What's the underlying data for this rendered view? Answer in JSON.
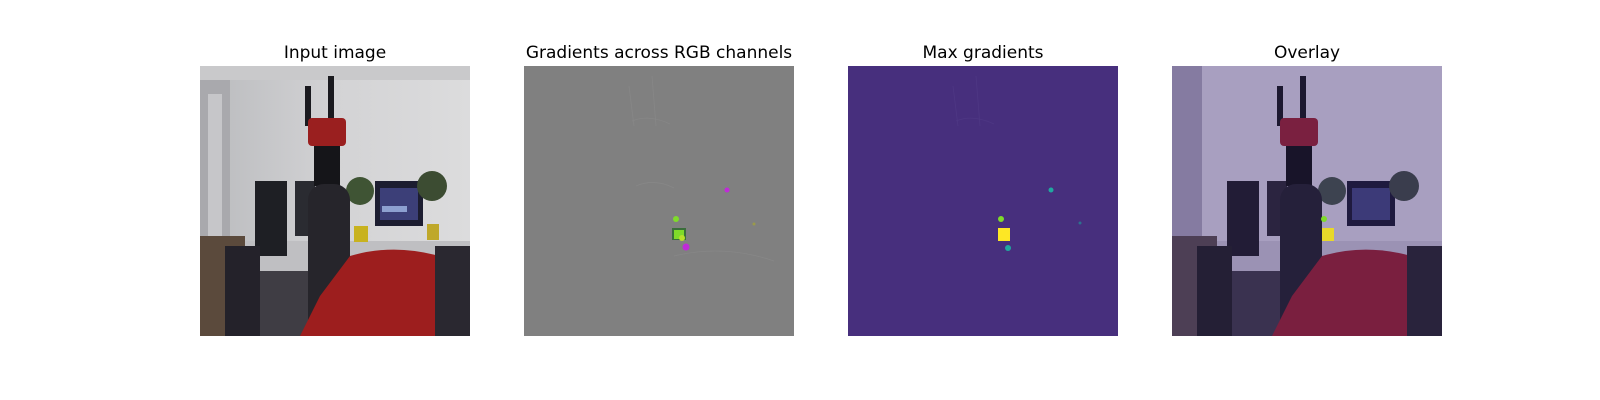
{
  "figure": {
    "panels": [
      {
        "id": "input",
        "title": "Input image"
      },
      {
        "id": "gradients",
        "title": "Gradients across RGB channels"
      },
      {
        "id": "max",
        "title": "Max gradients"
      },
      {
        "id": "overlay",
        "title": "Overlay"
      }
    ],
    "colors": {
      "gradients_bg": "#808080",
      "max_bg": "#472f7d",
      "highlight_yellow": "#fde725",
      "highlight_green": "#7fdb2a",
      "highlight_magenta": "#c02ad8",
      "highlight_teal": "#21a8a0"
    }
  }
}
